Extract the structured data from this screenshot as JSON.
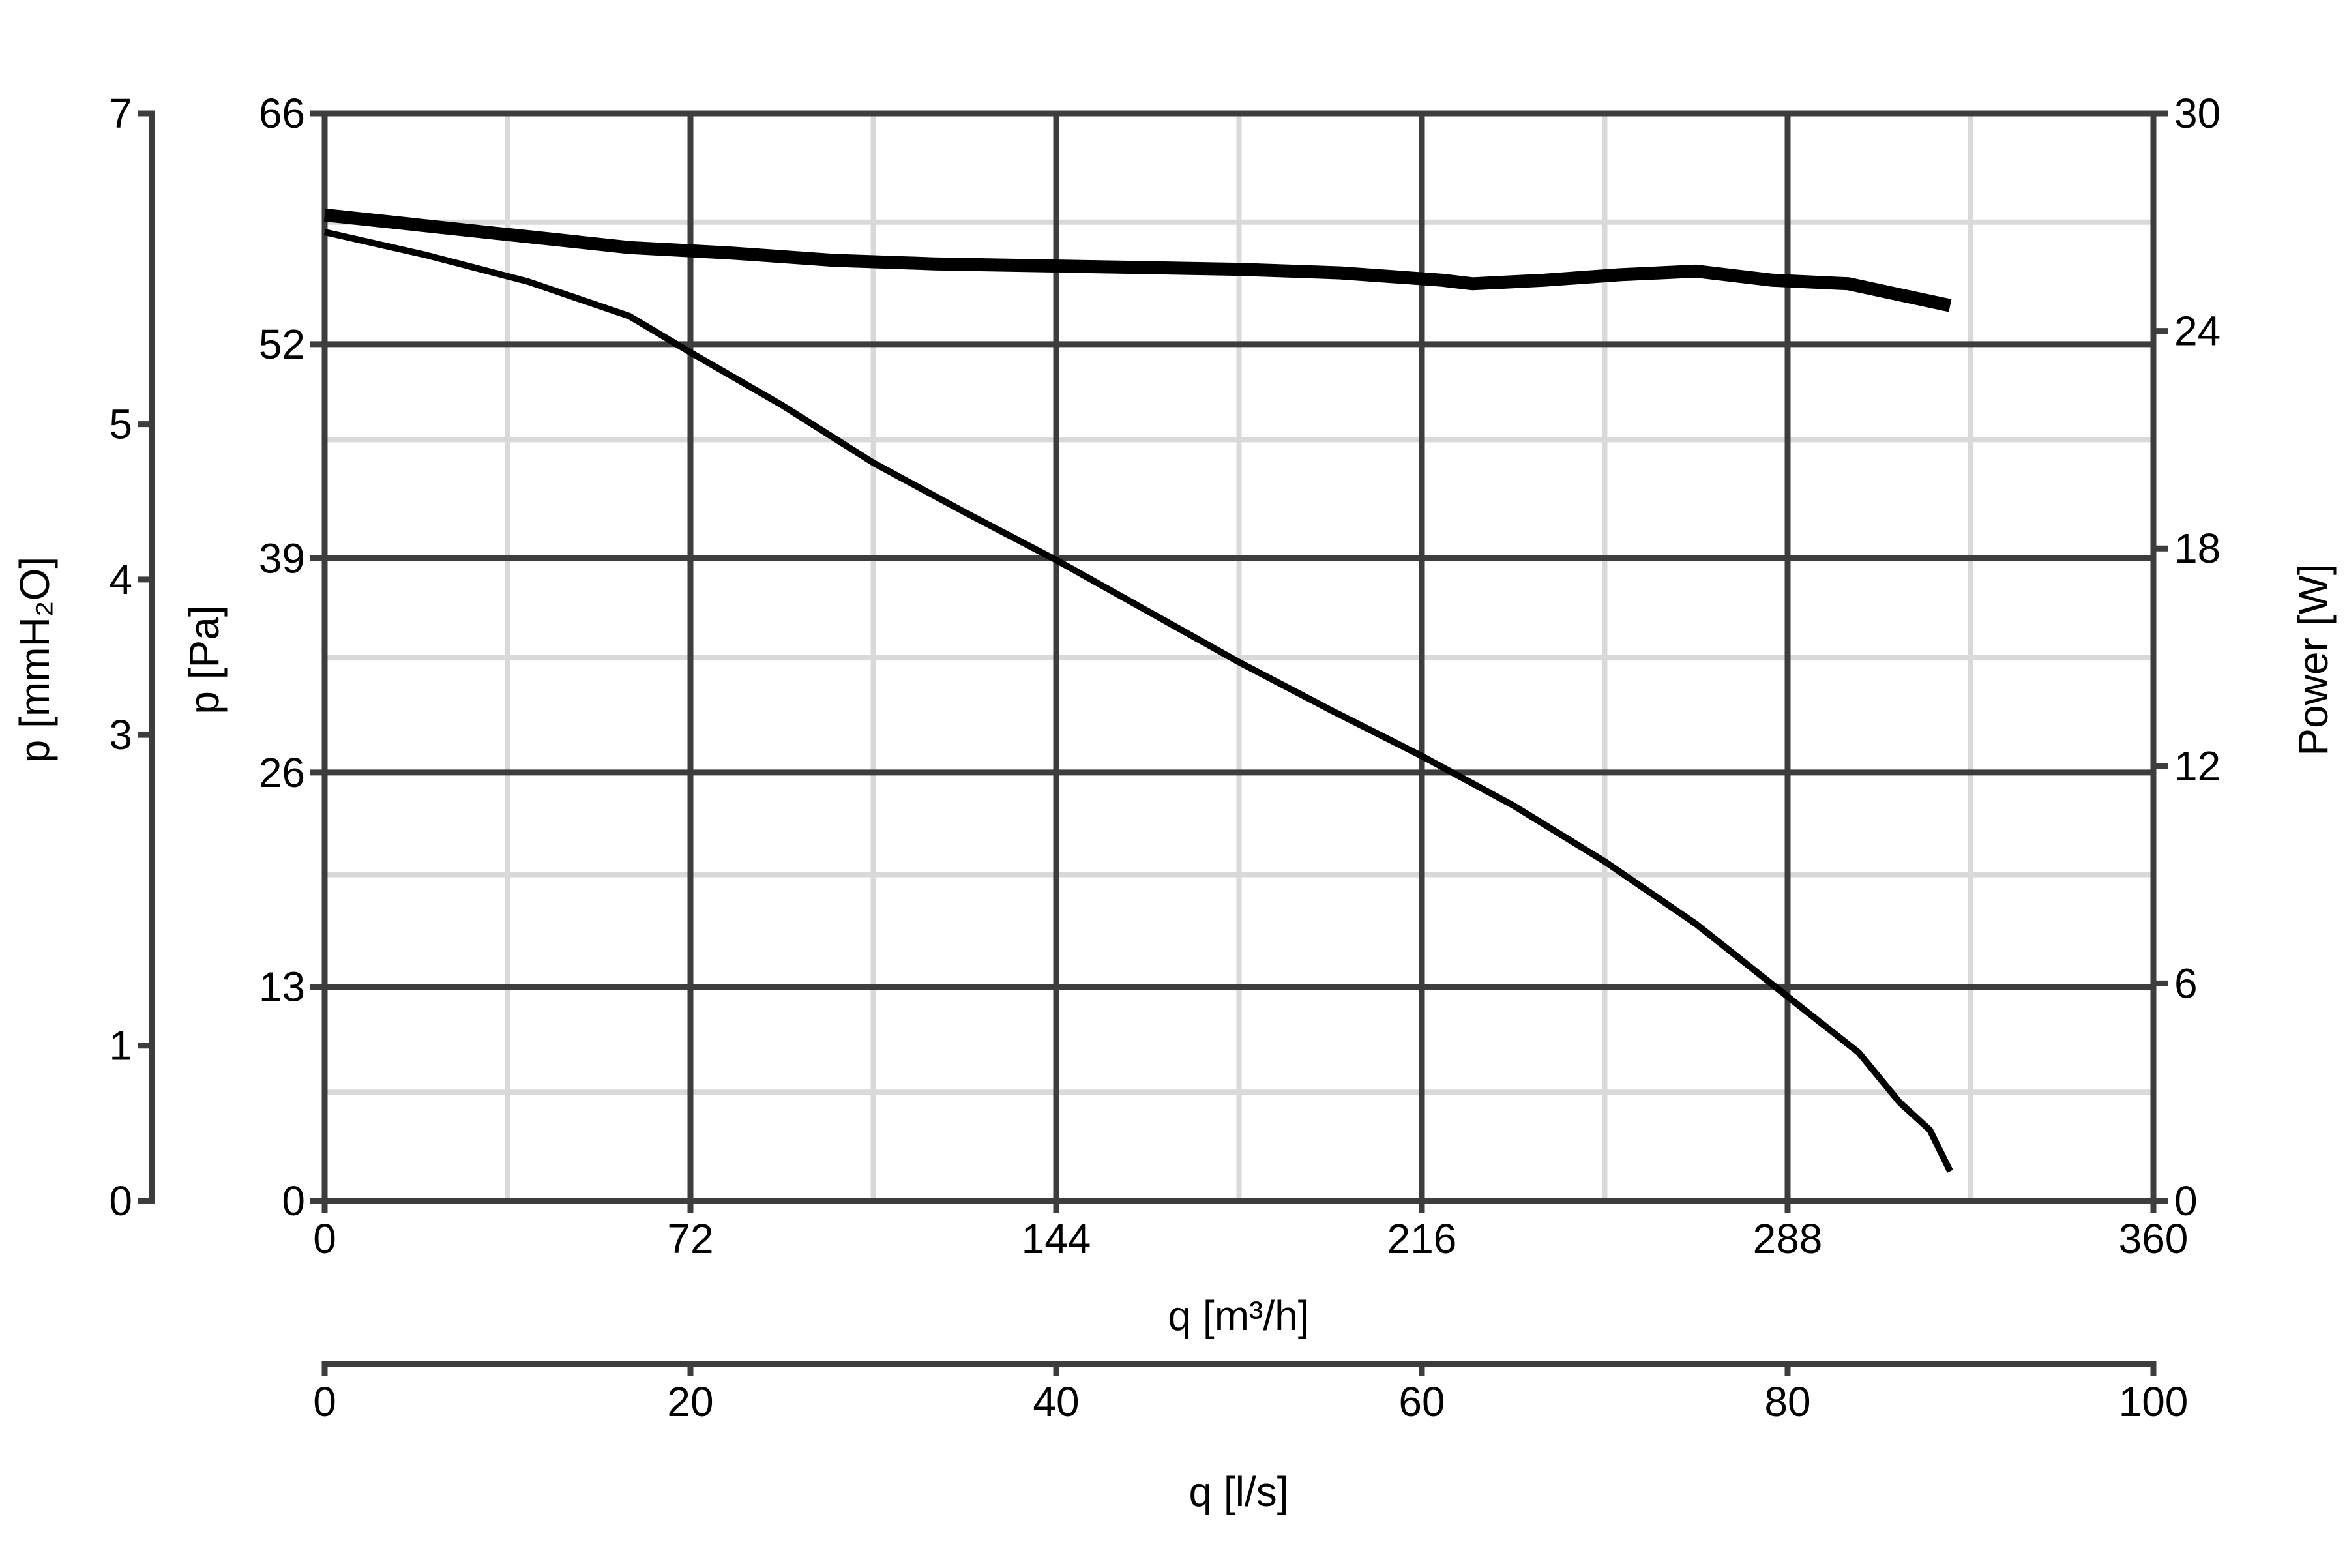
{
  "chart_data": {
    "type": "line",
    "title": "",
    "grid": true,
    "legend": "none",
    "colors": {
      "major_grid": "#3d3d3d",
      "minor_grid": "#d9d9d9",
      "series": "#000000",
      "axis": "#3d3d3d"
    },
    "x_axes": [
      {
        "id": "q_m3h",
        "label": "q [m³/h]",
        "range": [
          0,
          360
        ],
        "ticks": [
          0,
          72,
          144,
          216,
          288,
          360
        ],
        "tick_labels": [
          "0",
          "72",
          "144",
          "216",
          "288",
          "360"
        ]
      },
      {
        "id": "q_ls",
        "label": "q [l/s]",
        "range": [
          0,
          100
        ],
        "ticks": [
          0,
          20,
          40,
          60,
          80,
          100
        ],
        "tick_labels": [
          "0",
          "20",
          "40",
          "60",
          "80",
          "100"
        ]
      }
    ],
    "y_axes": [
      {
        "id": "p_mmh2o",
        "label": "p [mmH₂O]",
        "range": [
          0,
          7
        ],
        "ticks": [
          0,
          1,
          3,
          4,
          5,
          7
        ],
        "tick_labels": [
          "0",
          "1",
          "3",
          "4",
          "5",
          "7"
        ]
      },
      {
        "id": "p_pa",
        "label": "p [Pa]",
        "range": [
          0,
          66
        ],
        "ticks": [
          0,
          13,
          26,
          39,
          52,
          66
        ],
        "tick_labels": [
          "0",
          "13",
          "26",
          "39",
          "52",
          "66"
        ]
      },
      {
        "id": "power_w",
        "label": "Power [W]",
        "range": [
          0,
          30
        ],
        "ticks": [
          0,
          6,
          12,
          18,
          24,
          30
        ],
        "tick_labels": [
          "0",
          "6",
          "12",
          "18",
          "24",
          "30"
        ]
      }
    ],
    "series": [
      {
        "axis": "power_w",
        "stroke": "thick",
        "x": [
          0,
          20,
          40,
          60,
          80,
          100,
          120,
          140,
          160,
          180,
          200,
          220,
          226,
          240,
          255,
          270,
          285,
          300,
          320
        ],
        "y": [
          27.2,
          26.9,
          26.6,
          26.3,
          26.15,
          25.95,
          25.85,
          25.8,
          25.75,
          25.7,
          25.6,
          25.4,
          25.3,
          25.4,
          25.55,
          25.65,
          25.4,
          25.3,
          24.7
        ]
      },
      {
        "axis": "p_pa",
        "stroke": "thin",
        "x": [
          0,
          20,
          40,
          60,
          72,
          90,
          108,
          126,
          144,
          162,
          180,
          198,
          216,
          234,
          252,
          270,
          288,
          302,
          310,
          316,
          320
        ],
        "y": [
          58.8,
          57.4,
          55.8,
          53.7,
          51.5,
          48.3,
          44.8,
          41.8,
          38.9,
          35.8,
          32.7,
          29.8,
          27.0,
          24.0,
          20.6,
          16.8,
          12.4,
          9.0,
          6.0,
          4.3,
          1.8
        ]
      }
    ]
  }
}
